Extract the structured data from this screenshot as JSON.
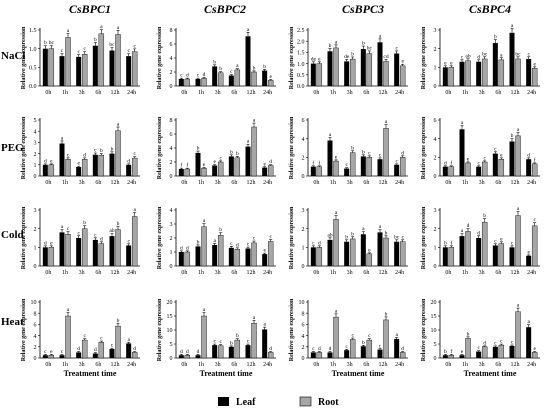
{
  "column_titles": [
    "CsBPC1",
    "CsBPC2",
    "CsBPC3",
    "CsBPC4"
  ],
  "row_titles": [
    "NaCl",
    "PEG",
    "Cold",
    "Heat"
  ],
  "ylabel": "Relative gene expression",
  "xlabel": "Treatment time",
  "legend": {
    "leaf": "Leaf",
    "root": "Root"
  },
  "colors": {
    "leaf": "#000000",
    "root": "#a6a6a6"
  },
  "chart_data": {
    "type": "bar",
    "categories": [
      "0h",
      "1h",
      "3h",
      "6h",
      "12h",
      "24h"
    ],
    "series_names": [
      "Leaf",
      "Root"
    ],
    "panels": [
      {
        "gene": "CsBPC1",
        "treatment": "NaCl",
        "ylim": [
          0,
          1.5
        ],
        "yticks": [
          0,
          0.5,
          1.0,
          1.5
        ],
        "leaf": [
          1.0,
          0.8,
          0.78,
          1.08,
          0.95,
          0.8
        ],
        "root": [
          1.0,
          1.3,
          0.85,
          1.4,
          1.38,
          0.92
        ],
        "leaf_letters": [
          "b",
          "c",
          "c",
          "b",
          "bc",
          "c"
        ],
        "root_letters": [
          "bc",
          "a",
          "c",
          "a",
          "a",
          "c"
        ]
      },
      {
        "gene": "CsBPC2",
        "treatment": "NaCl",
        "ylim": [
          0,
          8
        ],
        "yticks": [
          0,
          2,
          4,
          6,
          8
        ],
        "leaf": [
          1.0,
          1.0,
          2.8,
          1.5,
          7.1,
          2.2
        ],
        "root": [
          1.0,
          1.1,
          1.9,
          2.3,
          2.0,
          0.8
        ],
        "leaf_letters": [
          "c",
          "c",
          "b",
          "c",
          "a",
          "b"
        ],
        "root_letters": [
          "d",
          "d",
          "b",
          "a",
          "b",
          "e"
        ]
      },
      {
        "gene": "CsBPC3",
        "treatment": "NaCl",
        "ylim": [
          0,
          2.5
        ],
        "yticks": [
          0,
          0.5,
          1.0,
          1.5,
          2.0,
          2.5
        ],
        "leaf": [
          1.0,
          1.55,
          1.1,
          1.65,
          1.95,
          1.45
        ],
        "root": [
          1.0,
          1.7,
          1.2,
          1.45,
          1.1,
          0.9
        ],
        "leaf_letters": [
          "de",
          "b",
          "de",
          "b",
          "a",
          "c"
        ],
        "root_letters": [
          "e",
          "a",
          "b",
          "bc",
          "cd",
          "e"
        ]
      },
      {
        "gene": "CsBPC4",
        "treatment": "NaCl",
        "ylim": [
          0,
          3
        ],
        "yticks": [
          0,
          1,
          2,
          3
        ],
        "leaf": [
          1.0,
          1.3,
          1.3,
          2.3,
          2.85,
          1.45
        ],
        "root": [
          1.0,
          1.35,
          1.45,
          1.4,
          1.45,
          0.95
        ],
        "leaf_letters": [
          "e",
          "c",
          "d",
          "b",
          "a",
          "c"
        ],
        "root_letters": [
          "e",
          "ab",
          "bc",
          "a",
          "bc",
          "e"
        ]
      },
      {
        "gene": "CsBPC1",
        "treatment": "PEG",
        "ylim": [
          0,
          5
        ],
        "yticks": [
          0,
          1,
          2,
          3,
          4,
          5
        ],
        "leaf": [
          1.0,
          2.9,
          0.8,
          1.9,
          2.0,
          1.0
        ],
        "root": [
          1.0,
          1.5,
          1.5,
          1.85,
          4.05,
          1.6
        ],
        "leaf_letters": [
          "d",
          "a",
          "e",
          "c",
          "b",
          "d"
        ],
        "root_letters": [
          "e",
          "c",
          "d",
          "b",
          "a",
          "c"
        ]
      },
      {
        "gene": "CsBPC2",
        "treatment": "PEG",
        "ylim": [
          0,
          8
        ],
        "yticks": [
          0,
          2,
          4,
          6,
          8
        ],
        "leaf": [
          1.0,
          3.3,
          1.5,
          2.8,
          4.2,
          1.2
        ],
        "root": [
          1.0,
          1.1,
          2.0,
          2.6,
          7.0,
          1.5
        ],
        "leaf_letters": [
          "f",
          "b",
          "e",
          "b",
          "a",
          "e"
        ],
        "root_letters": [
          "f",
          "e",
          "c",
          "b",
          "a",
          "d"
        ]
      },
      {
        "gene": "CsBPC3",
        "treatment": "PEG",
        "ylim": [
          0,
          6
        ],
        "yticks": [
          0,
          2,
          4,
          6
        ],
        "leaf": [
          1.0,
          3.8,
          0.8,
          2.1,
          1.8,
          1.2
        ],
        "root": [
          1.0,
          1.6,
          2.5,
          2.0,
          5.1,
          2.0
        ],
        "leaf_letters": [
          "f",
          "a",
          "c",
          "b",
          "c",
          "c"
        ],
        "root_letters": [
          "f",
          "e",
          "b",
          "c",
          "a",
          "d"
        ]
      },
      {
        "gene": "CsBPC4",
        "treatment": "PEG",
        "ylim": [
          0,
          6
        ],
        "yticks": [
          0,
          2,
          4,
          6
        ],
        "leaf": [
          1.0,
          5.0,
          1.0,
          2.4,
          3.7,
          1.8
        ],
        "root": [
          1.0,
          1.4,
          1.5,
          1.8,
          4.3,
          1.3
        ],
        "leaf_letters": [
          "d",
          "a",
          "c",
          "c",
          "b",
          "d"
        ],
        "root_letters": [
          "f",
          "e",
          "c",
          "e",
          "a",
          "f"
        ]
      },
      {
        "gene": "CsBPC1",
        "treatment": "Cold",
        "ylim": [
          0,
          3
        ],
        "yticks": [
          0,
          1,
          2,
          3
        ],
        "leaf": [
          1.0,
          1.8,
          1.5,
          1.4,
          1.6,
          1.1
        ],
        "root": [
          1.0,
          1.7,
          2.0,
          1.2,
          1.95,
          2.65
        ],
        "leaf_letters": [
          "d",
          "a",
          "c",
          "c",
          "ab",
          "c"
        ],
        "root_letters": [
          "e",
          "c",
          "b",
          "d",
          "b",
          "a"
        ]
      },
      {
        "gene": "CsBPC2",
        "treatment": "Cold",
        "ylim": [
          0,
          4
        ],
        "yticks": [
          0,
          1,
          2,
          3,
          4
        ],
        "leaf": [
          1.0,
          1.4,
          1.5,
          1.3,
          1.25,
          0.85
        ],
        "root": [
          1.0,
          2.8,
          2.2,
          1.2,
          1.65,
          1.75
        ],
        "leaf_letters": [
          "d",
          "b",
          "a",
          "c",
          "c",
          "e"
        ],
        "root_letters": [
          "d",
          "a",
          "b",
          "d",
          "c",
          "c"
        ]
      },
      {
        "gene": "CsBPC3",
        "treatment": "Cold",
        "ylim": [
          0,
          3
        ],
        "yticks": [
          0,
          1,
          2,
          3
        ],
        "leaf": [
          1.0,
          1.4,
          1.3,
          1.7,
          1.8,
          1.3
        ],
        "root": [
          1.0,
          2.5,
          1.45,
          0.65,
          1.5,
          1.3
        ],
        "leaf_letters": [
          "c",
          "ab",
          "b",
          "a",
          "a",
          "bc"
        ],
        "root_letters": [
          "d",
          "a",
          "b",
          "e",
          "b",
          "c"
        ]
      },
      {
        "gene": "CsBPC4",
        "treatment": "Cold",
        "ylim": [
          0,
          3
        ],
        "yticks": [
          0,
          1,
          2,
          3
        ],
        "leaf": [
          1.0,
          1.6,
          1.5,
          1.1,
          1.0,
          0.55
        ],
        "root": [
          1.0,
          1.85,
          2.35,
          1.2,
          2.7,
          2.15
        ],
        "leaf_letters": [
          "b",
          "a",
          "d",
          "c",
          "c",
          "e"
        ],
        "root_letters": [
          "f",
          "d",
          "b",
          "e",
          "a",
          "c"
        ]
      },
      {
        "gene": "CsBPC1",
        "treatment": "Heat",
        "ylim": [
          0,
          10
        ],
        "yticks": [
          0,
          2,
          4,
          6,
          8,
          10
        ],
        "leaf": [
          0.5,
          0.5,
          1.0,
          0.8,
          1.6,
          2.6
        ],
        "root": [
          0.5,
          7.5,
          3.2,
          2.8,
          5.7,
          1.0
        ],
        "leaf_letters": [
          "c",
          "c",
          "d",
          "d",
          "c",
          "a"
        ],
        "root_letters": [
          "e",
          "a",
          "c",
          "c",
          "b",
          "d"
        ]
      },
      {
        "gene": "CsBPC2",
        "treatment": "Heat",
        "ylim": [
          0,
          20
        ],
        "yticks": [
          0,
          5,
          10,
          15,
          20
        ],
        "leaf": [
          1.0,
          1.0,
          4.6,
          4.0,
          4.6,
          10.2
        ],
        "root": [
          1.0,
          15.0,
          4.4,
          6.4,
          12.4,
          2.0
        ],
        "leaf_letters": [
          "d",
          "d",
          "c",
          "b",
          "c",
          "a"
        ],
        "root_letters": [
          "d",
          "a",
          "c",
          "b",
          "a",
          "d"
        ]
      },
      {
        "gene": "CsBPC3",
        "treatment": "Heat",
        "ylim": [
          0,
          10
        ],
        "yticks": [
          0,
          2,
          4,
          6,
          8,
          10
        ],
        "leaf": [
          1.0,
          1.0,
          1.4,
          2.1,
          1.5,
          3.4
        ],
        "root": [
          1.0,
          7.3,
          3.3,
          3.2,
          6.8,
          1.0
        ],
        "leaf_letters": [
          "c",
          "d",
          "c",
          "b",
          "c",
          "a"
        ],
        "root_letters": [
          "d",
          "a",
          "c",
          "c",
          "b",
          "d"
        ]
      },
      {
        "gene": "CsBPC4",
        "treatment": "Heat",
        "ylim": [
          0,
          20
        ],
        "yticks": [
          0,
          5,
          10,
          15,
          20
        ],
        "leaf": [
          1.0,
          1.0,
          2.3,
          4.0,
          4.3,
          11.0
        ],
        "root": [
          1.0,
          7.0,
          4.0,
          4.6,
          16.5,
          2.0
        ],
        "leaf_letters": [
          "b",
          "e",
          "c",
          "c",
          "c",
          "a"
        ],
        "root_letters": [
          "f",
          "b",
          "d",
          "c",
          "a",
          "e"
        ]
      }
    ]
  }
}
